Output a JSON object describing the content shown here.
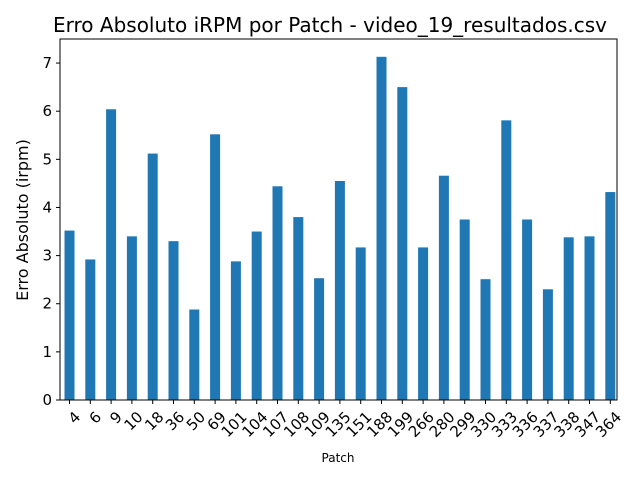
{
  "chart_data": {
    "type": "bar",
    "title": "Erro Absoluto iRPM por Patch - video_19_resultados.csv",
    "xlabel": "Patch",
    "ylabel": "Erro Absoluto (irpm)",
    "categories": [
      "4",
      "6",
      "9",
      "10",
      "18",
      "36",
      "50",
      "69",
      "101",
      "104",
      "107",
      "108",
      "109",
      "135",
      "151",
      "188",
      "199",
      "266",
      "280",
      "299",
      "330",
      "333",
      "336",
      "337",
      "338",
      "347",
      "364"
    ],
    "values": [
      3.52,
      2.92,
      6.04,
      3.4,
      5.12,
      3.3,
      1.88,
      5.52,
      2.88,
      3.5,
      4.44,
      3.8,
      2.53,
      4.55,
      3.17,
      7.13,
      6.5,
      3.17,
      4.66,
      3.75,
      2.51,
      5.81,
      3.75,
      2.3,
      3.38,
      3.4,
      4.32
    ],
    "yticks": [
      0,
      1,
      2,
      3,
      4,
      5,
      6,
      7
    ],
    "ylim": [
      0,
      7.5
    ],
    "bar_color": "#1f77b4",
    "grid": false,
    "legend": "none"
  }
}
